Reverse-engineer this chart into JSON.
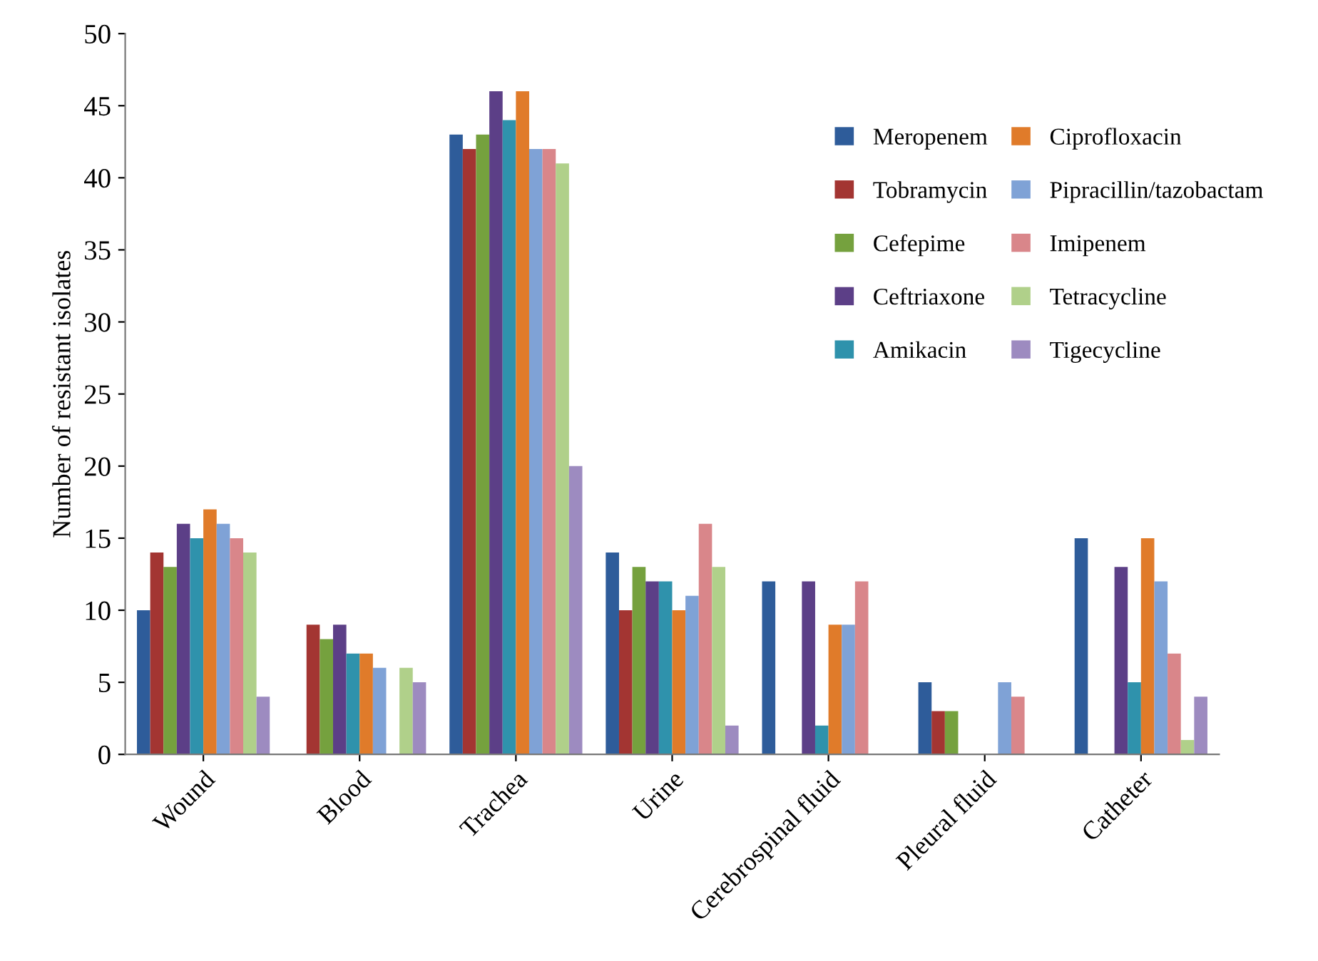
{
  "chart_data": {
    "type": "bar",
    "ylabel": "Number of resistant isolates",
    "categories": [
      "Wound",
      "Blood",
      "Trachea",
      "Urine",
      "Cerebrospinal fluid",
      "Pleural fluid",
      "Catheter"
    ],
    "series": [
      {
        "name": "Meropenem",
        "color": "#2e5c9a",
        "values": [
          10,
          0,
          43,
          14,
          12,
          5,
          15
        ]
      },
      {
        "name": "Tobramycin",
        "color": "#a33532",
        "values": [
          14,
          9,
          42,
          10,
          0,
          3,
          0
        ]
      },
      {
        "name": "Cefepime",
        "color": "#75a13e",
        "values": [
          13,
          8,
          43,
          13,
          0,
          3,
          0
        ]
      },
      {
        "name": "Ceftriaxone",
        "color": "#5c3f87",
        "values": [
          16,
          9,
          46,
          12,
          12,
          0,
          13
        ]
      },
      {
        "name": "Amikacin",
        "color": "#2f92ac",
        "values": [
          15,
          7,
          44,
          12,
          2,
          0,
          5
        ]
      },
      {
        "name": "Ciprofloxacin",
        "color": "#e07b2a",
        "values": [
          17,
          7,
          46,
          10,
          9,
          0,
          15
        ]
      },
      {
        "name": "Pipracillin/tazobactam",
        "color": "#7fa2d6",
        "values": [
          16,
          6,
          42,
          11,
          9,
          5,
          12
        ]
      },
      {
        "name": "Imipenem",
        "color": "#d9868a",
        "values": [
          15,
          0,
          42,
          16,
          12,
          4,
          7
        ]
      },
      {
        "name": "Tetracycline",
        "color": "#b0d08a",
        "values": [
          14,
          6,
          41,
          13,
          0,
          0,
          1
        ]
      },
      {
        "name": "Tigecycline",
        "color": "#9d8bc0",
        "values": [
          4,
          5,
          20,
          2,
          0,
          0,
          4
        ]
      }
    ],
    "ylim": [
      0,
      50
    ],
    "yticks": [
      0,
      5,
      10,
      15,
      20,
      25,
      30,
      35,
      40,
      45,
      50
    ],
    "grid": false,
    "legend": "top right"
  }
}
